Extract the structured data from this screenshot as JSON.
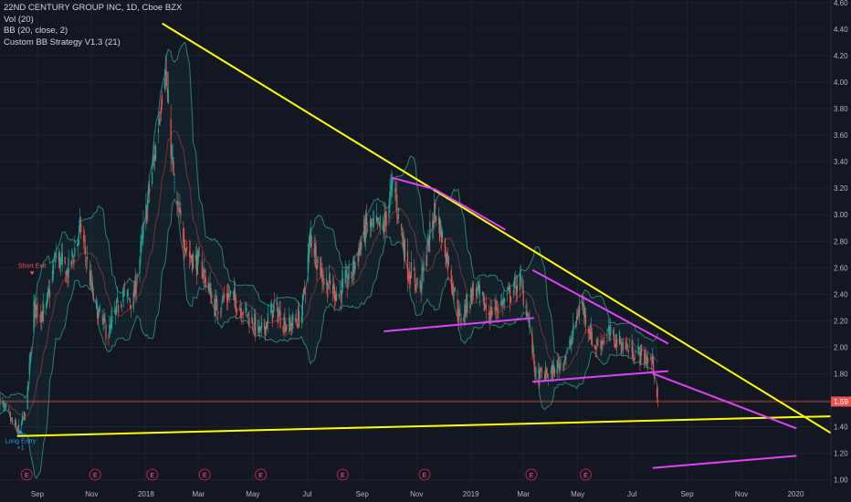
{
  "legend": {
    "symbol": "22ND CENTURY GROUP INC, 1D, Cboe BZX",
    "vol": "Vol (20)",
    "bb": "BB (20, close, 2)",
    "strategy": "Custom BB Strategy V1.3  (21)"
  },
  "current_price": "1.59",
  "annotations": {
    "long_entry": "Long Entry",
    "long_entry_qty": "+1",
    "short_exit": "Short Exit"
  },
  "earnings_marker": "E",
  "colors": {
    "background": "#131722",
    "up_candle": "#26a69a",
    "down_candle": "#ef5350",
    "trendline_yellow": "#ffff00",
    "trendline_magenta": "#e040fb",
    "bollinger": "#2e8b7a",
    "price_line": "#ef5350"
  },
  "chart_data": {
    "type": "candlestick",
    "title": "22ND CENTURY GROUP INC, 1D, Cboe BZX",
    "y_ticks": [
      "1.00",
      "1.20",
      "1.40",
      "1.60",
      "1.80",
      "2.00",
      "2.20",
      "2.40",
      "2.60",
      "2.80",
      "3.00",
      "3.20",
      "3.40",
      "3.60",
      "3.80",
      "4.00",
      "4.20",
      "4.40",
      "4.60"
    ],
    "ylim": [
      0.97,
      4.62
    ],
    "x_ticks": [
      "Sep",
      "Nov",
      "2018",
      "Mar",
      "May",
      "Jul",
      "Sep",
      "Nov",
      "2019",
      "Mar",
      "May",
      "Jul",
      "Sep",
      "Nov",
      "2020"
    ],
    "price_path": [
      [
        "2017-07-20",
        1.6
      ],
      [
        "2017-08-05",
        1.42
      ],
      [
        "2017-08-12",
        1.36
      ],
      [
        "2017-08-20",
        1.55
      ],
      [
        "2017-08-28",
        2.3
      ],
      [
        "2017-09-10",
        2.25
      ],
      [
        "2017-09-22",
        2.7
      ],
      [
        "2017-10-05",
        2.55
      ],
      [
        "2017-10-20",
        2.9
      ],
      [
        "2017-11-05",
        2.3
      ],
      [
        "2017-11-20",
        2.1
      ],
      [
        "2017-12-05",
        2.4
      ],
      [
        "2017-12-18",
        2.35
      ],
      [
        "2018-01-01",
        3.0
      ],
      [
        "2018-01-12",
        3.5
      ],
      [
        "2018-01-22",
        4.15
      ],
      [
        "2018-02-03",
        3.1
      ],
      [
        "2018-02-18",
        2.7
      ],
      [
        "2018-03-05",
        2.6
      ],
      [
        "2018-03-20",
        2.3
      ],
      [
        "2018-04-05",
        2.4
      ],
      [
        "2018-04-25",
        2.25
      ],
      [
        "2018-05-10",
        2.1
      ],
      [
        "2018-05-25",
        2.3
      ],
      [
        "2018-06-10",
        2.15
      ],
      [
        "2018-06-25",
        2.25
      ],
      [
        "2018-07-05",
        2.85
      ],
      [
        "2018-07-20",
        2.5
      ],
      [
        "2018-08-05",
        2.4
      ],
      [
        "2018-08-20",
        2.55
      ],
      [
        "2018-09-05",
        2.9
      ],
      [
        "2018-09-25",
        2.9
      ],
      [
        "2018-10-06",
        3.25
      ],
      [
        "2018-10-22",
        2.6
      ],
      [
        "2018-11-05",
        2.45
      ],
      [
        "2018-11-22",
        3.05
      ],
      [
        "2018-12-08",
        2.6
      ],
      [
        "2018-12-20",
        2.2
      ],
      [
        "2019-01-05",
        2.45
      ],
      [
        "2019-01-22",
        2.25
      ],
      [
        "2019-02-08",
        2.35
      ],
      [
        "2019-02-25",
        2.5
      ],
      [
        "2019-03-05",
        2.3
      ],
      [
        "2019-03-15",
        1.78
      ],
      [
        "2019-04-01",
        1.8
      ],
      [
        "2019-04-20",
        1.95
      ],
      [
        "2019-05-05",
        2.35
      ],
      [
        "2019-05-20",
        2.0
      ],
      [
        "2019-06-05",
        2.1
      ],
      [
        "2019-06-25",
        2.0
      ],
      [
        "2019-07-10",
        1.95
      ],
      [
        "2019-07-25",
        1.88
      ],
      [
        "2019-07-30",
        1.59
      ]
    ],
    "trendlines": [
      {
        "color": "yellow",
        "from": [
          "2018-01-20",
          4.44
        ],
        "to": [
          "2020-02-15",
          1.33
        ]
      },
      {
        "color": "yellow",
        "from": [
          "2017-08-10",
          1.33
        ],
        "to": [
          "2020-02-15",
          1.48
        ]
      },
      {
        "color": "magenta",
        "from": [
          "2018-10-04",
          3.28
        ],
        "to": [
          "2018-11-22",
          3.19
        ]
      },
      {
        "color": "magenta",
        "from": [
          "2018-11-22",
          3.19
        ],
        "to": [
          "2019-02-08",
          2.89
        ]
      },
      {
        "color": "magenta",
        "from": [
          "2018-09-26",
          2.12
        ],
        "to": [
          "2019-03-12",
          2.22
        ]
      },
      {
        "color": "magenta",
        "from": [
          "2019-03-12",
          2.58
        ],
        "to": [
          "2019-08-10",
          2.03
        ]
      },
      {
        "color": "magenta",
        "from": [
          "2019-03-12",
          1.74
        ],
        "to": [
          "2019-08-10",
          1.82
        ]
      },
      {
        "color": "magenta",
        "from": [
          "2019-07-25",
          1.8
        ],
        "to": [
          "2020-01-01",
          1.39
        ]
      },
      {
        "color": "magenta",
        "from": [
          "2019-07-25",
          1.09
        ],
        "to": [
          "2020-01-01",
          1.18
        ]
      }
    ],
    "events": {
      "earnings": [
        "2017-08-20",
        "2017-11-05",
        "2018-01-08",
        "2018-03-08",
        "2018-05-10",
        "2018-08-10",
        "2018-11-10",
        "2019-03-10",
        "2019-05-10"
      ],
      "long_entry": [
        "2017-08-13",
        1.36
      ],
      "short_exit": [
        "2017-08-26",
        2.6
      ]
    },
    "last_price": 1.59,
    "grid": true,
    "legend": "top-left"
  }
}
